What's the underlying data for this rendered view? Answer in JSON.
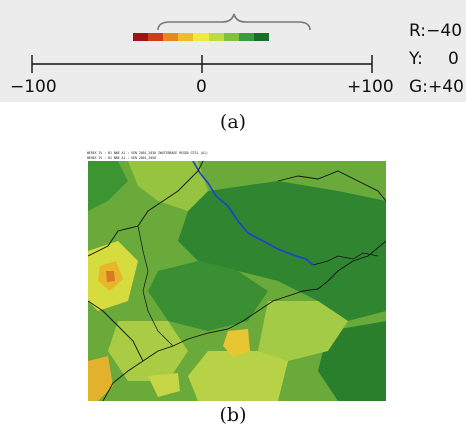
{
  "panel_a": {
    "colors": [
      "#9c1414",
      "#d23c1c",
      "#e58a1e",
      "#ecbf2a",
      "#eeeb3a",
      "#bfdc3e",
      "#7fc040",
      "#3d9a3c",
      "#1a6e2a"
    ],
    "axis_min_label": "−100",
    "axis_mid_label": "0",
    "axis_max_label": "+100",
    "legend": [
      {
        "letter": "R:",
        "value": "−40"
      },
      {
        "letter": "Y:",
        "value": "0"
      },
      {
        "letter": "G:",
        "value": "+40"
      }
    ],
    "caption": "(a)"
  },
  "panel_b": {
    "header_line_1": "WEREX IV : B1 NNE A1 : SEN 2001_2030 ZWUTERBASE REGDO GTS1 (A1)",
    "header_line_2": "WEREX IV : B1 NNE A1 : SEN 2001_2050",
    "caption": "(b)"
  }
}
